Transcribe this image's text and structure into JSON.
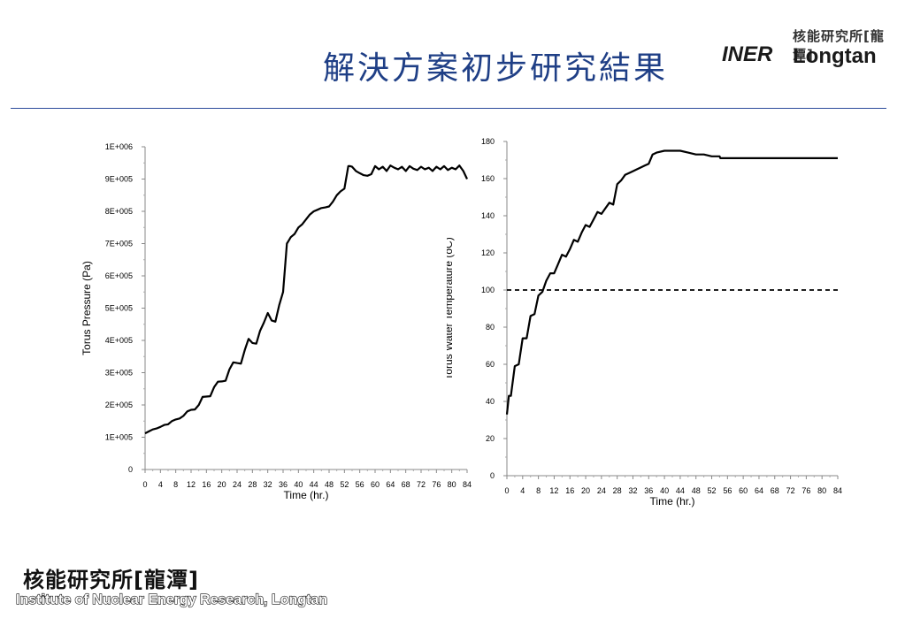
{
  "slide": {
    "title": "解決方案初步研究結果"
  },
  "logo_top": {
    "chinese": "核能研究所[龍潭]",
    "inr": "INER",
    "longtan": "Longtan"
  },
  "logo_bottom": {
    "chinese": "核能研究所[龍潭]",
    "english": "Institute of Nuclear Energy Research, Longtan"
  },
  "chart_data": [
    {
      "type": "line",
      "title": "",
      "xlabel": "Time (hr.)",
      "ylabel": "Torus Pressure (Pa)",
      "xlim": [
        0,
        84
      ],
      "ylim": [
        0,
        1000000
      ],
      "x_ticks": [
        "0",
        "4",
        "8",
        "12",
        "16",
        "20",
        "24",
        "28",
        "32",
        "36",
        "40",
        "44",
        "48",
        "52",
        "56",
        "60",
        "64",
        "68",
        "72",
        "76",
        "80",
        "84"
      ],
      "y_ticks": [
        "0",
        "1E+005",
        "2E+005",
        "3E+005",
        "4E+005",
        "5E+005",
        "6E+005",
        "7E+005",
        "8E+005",
        "9E+005",
        "1E+006"
      ],
      "grid": false,
      "series": [
        {
          "color": "#000000",
          "x": [
            0,
            1,
            2,
            3,
            4,
            5,
            6,
            7,
            8,
            9,
            10,
            11,
            12,
            13,
            14,
            15,
            16,
            17,
            18,
            19,
            20,
            21,
            22,
            23,
            24,
            25,
            26,
            27,
            28,
            29,
            30,
            31,
            32,
            33,
            34,
            35,
            36,
            37,
            37.5,
            38,
            39,
            40,
            41,
            42,
            43,
            44,
            45,
            46,
            47,
            48,
            49,
            50,
            51,
            52,
            53,
            53.5,
            54,
            55,
            56,
            57,
            58,
            59,
            60,
            61,
            62,
            63,
            64,
            65,
            66,
            67,
            68,
            69,
            70,
            71,
            72,
            73,
            74,
            75,
            76,
            77,
            78,
            79,
            80,
            81,
            82,
            83,
            84
          ],
          "y": [
            112000,
            118000,
            124000,
            127000,
            132000,
            138000,
            140000,
            150000,
            155000,
            158000,
            166000,
            180000,
            185000,
            186000,
            200000,
            225000,
            226000,
            227000,
            255000,
            272000,
            273000,
            275000,
            310000,
            332000,
            330000,
            328000,
            370000,
            405000,
            392000,
            390000,
            430000,
            455000,
            485000,
            462000,
            458000,
            510000,
            550000,
            700000,
            710000,
            720000,
            730000,
            750000,
            760000,
            775000,
            790000,
            800000,
            805000,
            810000,
            812000,
            815000,
            830000,
            850000,
            862000,
            870000,
            940000,
            940000,
            938000,
            925000,
            918000,
            912000,
            910000,
            915000,
            940000,
            930000,
            938000,
            925000,
            942000,
            935000,
            930000,
            938000,
            925000,
            940000,
            932000,
            928000,
            938000,
            930000,
            935000,
            925000,
            938000,
            930000,
            940000,
            928000,
            935000,
            930000,
            942000,
            925000,
            900000
          ]
        }
      ]
    },
    {
      "type": "line",
      "title": "",
      "xlabel": "Time (hr.)",
      "ylabel": "Torus Water Temperature (oC)",
      "xlim": [
        0,
        84
      ],
      "ylim": [
        0,
        180
      ],
      "x_ticks": [
        "0",
        "4",
        "8",
        "12",
        "16",
        "20",
        "24",
        "28",
        "32",
        "36",
        "40",
        "44",
        "48",
        "52",
        "56",
        "60",
        "64",
        "68",
        "72",
        "76",
        "80",
        "84"
      ],
      "y_ticks": [
        "0",
        "20",
        "40",
        "60",
        "80",
        "100",
        "120",
        "140",
        "160",
        "180"
      ],
      "grid": false,
      "reference_line": {
        "y": 100,
        "style": "dashed",
        "color": "#000000"
      },
      "series": [
        {
          "color": "#000000",
          "x": [
            0,
            0.5,
            1,
            2,
            3,
            4,
            5,
            6,
            7,
            8,
            9,
            10,
            11,
            12,
            13,
            14,
            15,
            16,
            17,
            18,
            19,
            20,
            21,
            22,
            23,
            24,
            25,
            26,
            27,
            28,
            29,
            30,
            31,
            32,
            33,
            34,
            35,
            36,
            37,
            38,
            40,
            42,
            44,
            46,
            48,
            50,
            52,
            54,
            54.2,
            56,
            58,
            60,
            62,
            63,
            66,
            70,
            74,
            78,
            82,
            84
          ],
          "y": [
            33,
            43,
            43,
            59,
            60,
            74,
            74,
            86,
            87,
            97,
            99,
            105,
            109,
            109,
            114,
            119,
            118,
            122,
            127,
            126,
            131,
            135,
            134,
            138,
            142,
            141,
            144,
            147,
            146,
            157,
            159,
            162,
            163,
            164,
            165,
            166,
            167,
            168,
            173,
            174,
            175,
            175,
            175,
            174,
            173,
            173,
            172,
            172,
            171,
            171,
            171,
            171,
            171,
            171,
            171,
            171,
            171,
            171,
            171,
            171
          ]
        }
      ]
    }
  ]
}
